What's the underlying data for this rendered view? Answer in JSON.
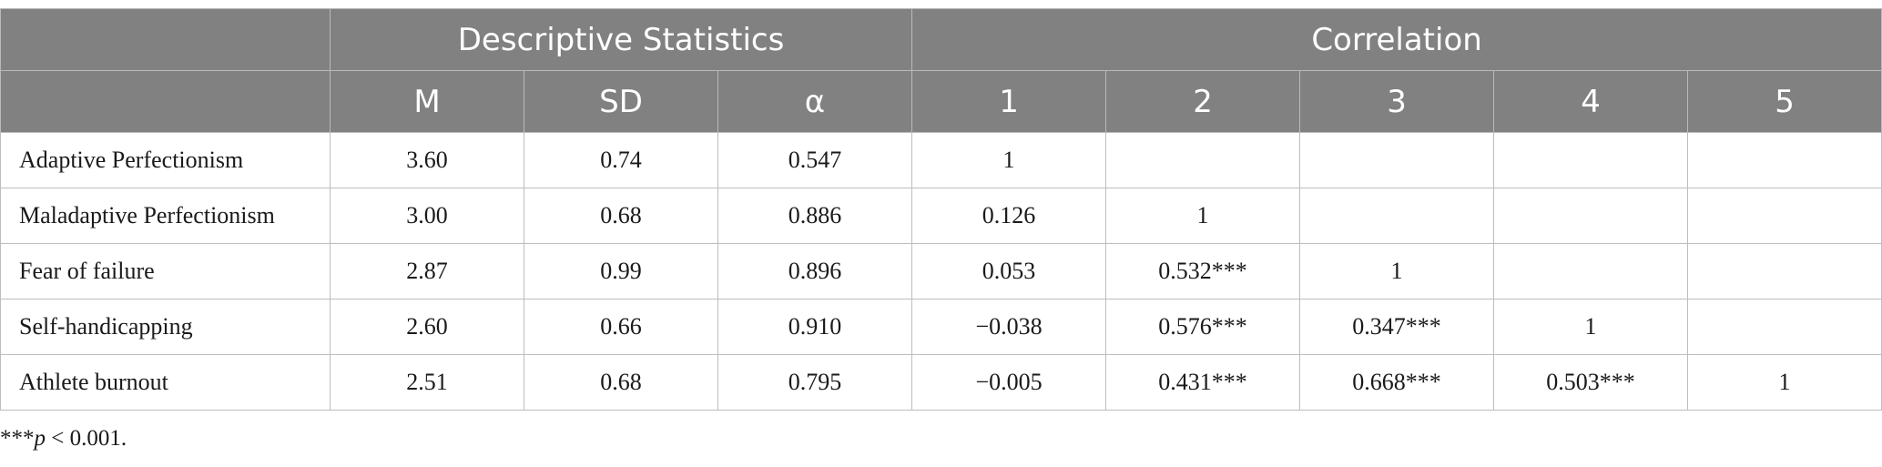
{
  "header": {
    "group1": "Descriptive Statistics",
    "group2": "Correlation",
    "columns": [
      "M",
      "SD",
      "α",
      "1",
      "2",
      "3",
      "4",
      "5"
    ]
  },
  "rows": [
    {
      "label": "Adaptive Perfectionism",
      "cells": [
        "3.60",
        "0.74",
        "0.547",
        "1",
        "",
        "",
        "",
        ""
      ]
    },
    {
      "label": "Maladaptive Perfectionism",
      "cells": [
        "3.00",
        "0.68",
        "0.886",
        "0.126",
        "1",
        "",
        "",
        ""
      ]
    },
    {
      "label": "Fear of failure",
      "cells": [
        "2.87",
        "0.99",
        "0.896",
        "0.053",
        "0.532***",
        "1",
        "",
        ""
      ]
    },
    {
      "label": "Self-handicapping",
      "cells": [
        "2.60",
        "0.66",
        "0.910",
        "−0.038",
        "0.576***",
        "0.347***",
        "1",
        ""
      ]
    },
    {
      "label": "Athlete burnout",
      "cells": [
        "2.51",
        "0.68",
        "0.795",
        "−0.005",
        "0.431***",
        "0.668***",
        "0.503***",
        "1"
      ]
    }
  ],
  "footnote": {
    "stars": "***",
    "p": "p",
    "text": " < 0.001."
  }
}
